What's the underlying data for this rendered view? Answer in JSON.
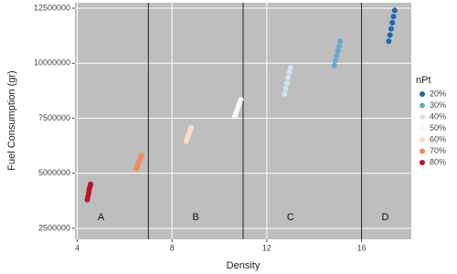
{
  "chart_data": {
    "type": "scatter",
    "xlabel": "Density",
    "ylabel": "Fuel Consumption (gr)",
    "xlim": [
      3.9,
      18.1
    ],
    "ylim": [
      2000000,
      12750000
    ],
    "xticks": [
      4,
      8,
      12,
      16
    ],
    "yticks": [
      2500000,
      5000000,
      7500000,
      10000000,
      12500000
    ],
    "grid": true,
    "legend_title": "nPt",
    "legend_position": "right",
    "vlines": [
      7,
      11,
      16
    ],
    "annotations": [
      {
        "text": "A",
        "x": 5,
        "y": 3000000
      },
      {
        "text": "B",
        "x": 9,
        "y": 3000000
      },
      {
        "text": "C",
        "x": 13,
        "y": 3000000
      },
      {
        "text": "D",
        "x": 17,
        "y": 3000000
      }
    ],
    "series": [
      {
        "name": "20%",
        "color": "#2166ac",
        "x": [
          17.15,
          17.2,
          17.25,
          17.3,
          17.35,
          17.4
        ],
        "y": [
          11000000,
          11280000,
          11560000,
          11840000,
          12120000,
          12400000
        ]
      },
      {
        "name": "30%",
        "color": "#67a9cf",
        "x": [
          14.85,
          14.9,
          14.95,
          15.0,
          15.05,
          15.1
        ],
        "y": [
          9900000,
          10120000,
          10340000,
          10560000,
          10780000,
          11000000
        ]
      },
      {
        "name": "40%",
        "color": "#d1e5f0",
        "x": [
          12.75,
          12.8,
          12.85,
          12.9,
          12.95,
          13.0
        ],
        "y": [
          8600000,
          8850000,
          9100000,
          9350000,
          9600000,
          9800000
        ]
      },
      {
        "name": "50%",
        "color": "#f7f7f7",
        "x": [
          10.65,
          10.7,
          10.75,
          10.8,
          10.85,
          10.9
        ],
        "y": [
          7600000,
          7750000,
          7900000,
          8050000,
          8200000,
          8350000
        ]
      },
      {
        "name": "60%",
        "color": "#fddbc7",
        "x": [
          8.6,
          8.64,
          8.68,
          8.72,
          8.76,
          8.8
        ],
        "y": [
          6450000,
          6580000,
          6700000,
          6830000,
          6960000,
          7080000
        ]
      },
      {
        "name": "70%",
        "color": "#ef8a62",
        "x": [
          6.5,
          6.54,
          6.58,
          6.62,
          6.66,
          6.7
        ],
        "y": [
          5200000,
          5330000,
          5450000,
          5570000,
          5700000,
          5820000
        ]
      },
      {
        "name": "80%",
        "color": "#b2182b",
        "x": [
          4.42,
          4.45,
          4.48,
          4.5,
          4.53,
          4.56
        ],
        "y": [
          3800000,
          3950000,
          4100000,
          4250000,
          4380000,
          4500000
        ]
      }
    ]
  }
}
